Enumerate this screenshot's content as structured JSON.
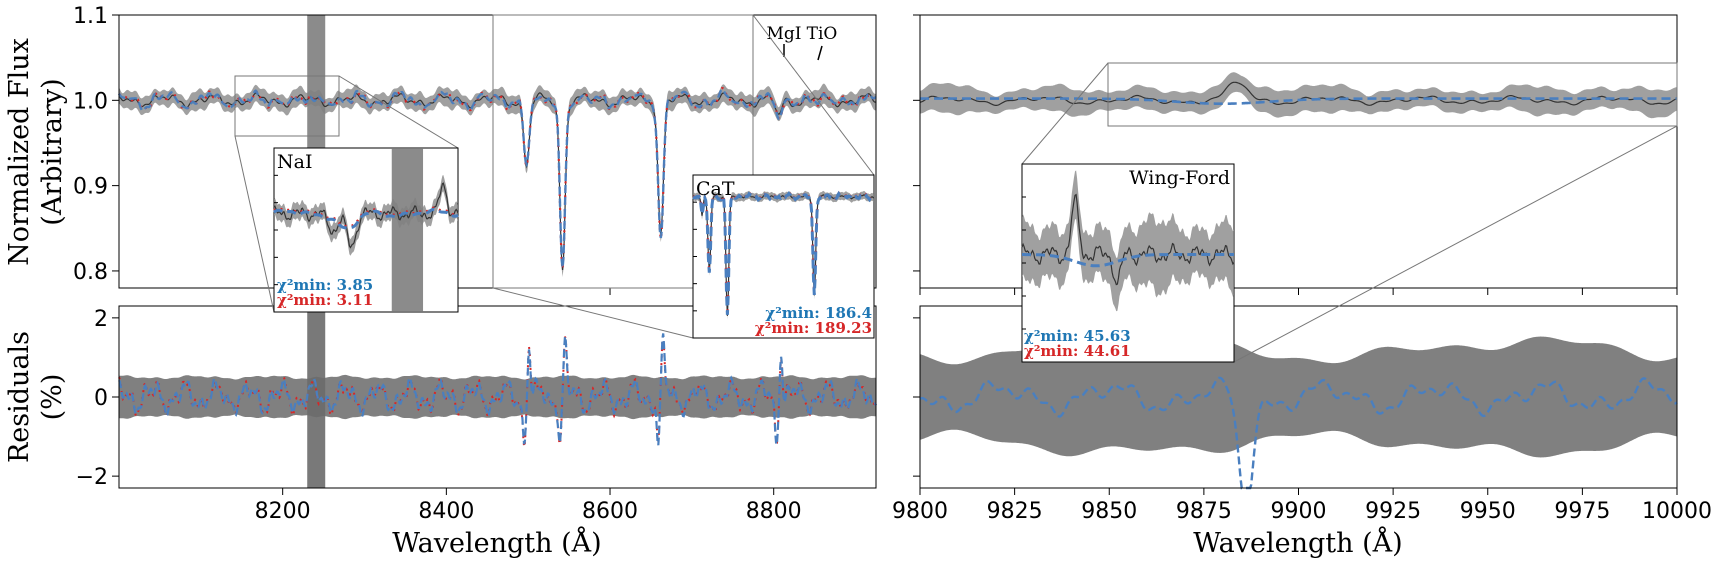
{
  "colors": {
    "model_blue": "#4a7fbf",
    "model_red": "#d62728",
    "data": "#333333",
    "band": "#808080",
    "masked": "#777777",
    "chi_blue": "#1f77b4",
    "chi_red": "#d62728"
  },
  "chart_data": [
    {
      "id": "left-top",
      "type": "line",
      "xlim": [
        8000,
        8925
      ],
      "ylim": [
        0.78,
        1.1
      ],
      "yticks": [
        "0.8",
        "0.9",
        "1.0",
        "1.1"
      ],
      "ylabel": "Normalized Flux\n(Arbitrary)",
      "masked_region": [
        8230,
        8252
      ],
      "line_annotations": [
        {
          "label": "MgI",
          "x": 8807
        },
        {
          "label": "TiO",
          "x": 8860
        }
      ],
      "absorption_lines": [
        {
          "x": 8498,
          "depth": 0.075
        },
        {
          "x": 8542,
          "depth": 0.195
        },
        {
          "x": 8662,
          "depth": 0.155
        },
        {
          "x": 8806,
          "depth": 0.02
        }
      ],
      "baseline": 1.0
    },
    {
      "id": "left-bottom",
      "type": "line",
      "xlim": [
        8000,
        8925
      ],
      "ylim": [
        -2.3,
        2.3
      ],
      "yticks": [
        "−2",
        "0",
        "2"
      ],
      "xticks": [
        "8200",
        "8400",
        "8600",
        "8800"
      ],
      "xtick_values": [
        8200,
        8400,
        8600,
        8800
      ],
      "ylabel": "Residuals\n(%)",
      "xlabel": "Wavelength (Å)",
      "band_halfwidth": 0.5
    },
    {
      "id": "right-top",
      "type": "line",
      "xlim": [
        9800,
        10000
      ],
      "ylim": [
        0.78,
        1.1
      ]
    },
    {
      "id": "right-bottom",
      "type": "line",
      "xlim": [
        9800,
        10000
      ],
      "ylim": [
        -2.3,
        2.3
      ],
      "xticks": [
        "9800",
        "9825",
        "9850",
        "9875",
        "9900",
        "9925",
        "9950",
        "9975",
        "10000"
      ],
      "xtick_values": [
        9800,
        9825,
        9850,
        9875,
        9900,
        9925,
        9950,
        9975,
        10000
      ],
      "xlabel": "Wavelength (Å)"
    }
  ],
  "insets": {
    "nai": {
      "title": "NaI",
      "chi_blue": ": 3.85",
      "chi_red": ": 3.11",
      "xlim": [
        8150,
        8280
      ]
    },
    "cat": {
      "title": "CaT",
      "chi_blue": ": 186.4",
      "chi_red": ": 189.23",
      "xlim": [
        8460,
        8780
      ]
    },
    "wingford": {
      "title": "Wing-Ford",
      "chi_blue": ": 45.63",
      "chi_red": ": 44.61",
      "xlim": [
        9850,
        10000
      ]
    }
  },
  "chi_label": "χ²min"
}
